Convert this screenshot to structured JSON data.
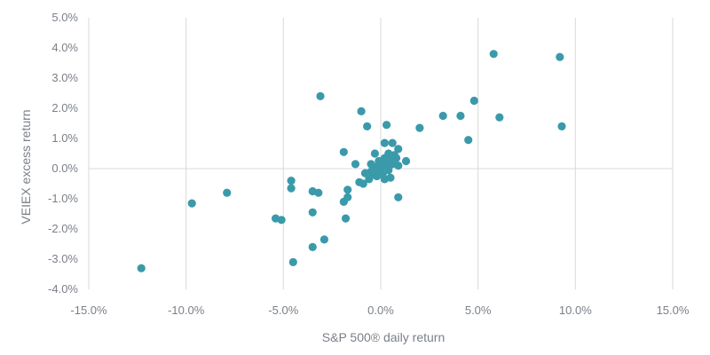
{
  "chart_data": {
    "type": "scatter",
    "xlabel": "S&P 500® daily return",
    "ylabel": "VEIEX excess return",
    "xlim": [
      -15,
      15
    ],
    "ylim": [
      -4,
      5
    ],
    "x_ticks": [
      -15,
      -10,
      -5,
      0,
      5,
      10,
      15
    ],
    "x_tick_labels": [
      "-15.0%",
      "-10.0%",
      "-5.0%",
      "0.0%",
      "5.0%",
      "10.0%",
      "15.0%"
    ],
    "y_ticks": [
      5,
      4,
      3,
      2,
      1,
      0,
      -1,
      -2,
      -3,
      -4
    ],
    "y_tick_labels": [
      "5.0%",
      "4.0%",
      "3.0%",
      "2.0%",
      "1.0%",
      "0.0%",
      "-1.0%",
      "-2.0%",
      "-3.0%",
      "-4.0%"
    ],
    "grid": "vertical",
    "marker_color": "#3a9aaa",
    "grid_color": "#d9d9d9",
    "series": [
      {
        "points": [
          [
            -12.3,
            -3.3
          ],
          [
            -9.7,
            -1.15
          ],
          [
            -7.9,
            -0.8
          ],
          [
            -5.4,
            -1.65
          ],
          [
            -5.1,
            -1.7
          ],
          [
            -4.6,
            -0.4
          ],
          [
            -4.6,
            -0.65
          ],
          [
            -4.5,
            -3.1
          ],
          [
            -3.5,
            -0.75
          ],
          [
            -3.5,
            -1.45
          ],
          [
            -3.5,
            -2.6
          ],
          [
            -3.2,
            -0.8
          ],
          [
            -3.1,
            2.4
          ],
          [
            -2.9,
            -2.35
          ],
          [
            -1.9,
            0.55
          ],
          [
            -1.9,
            -1.1
          ],
          [
            -1.8,
            -1.65
          ],
          [
            -1.7,
            -0.7
          ],
          [
            -1.7,
            -0.95
          ],
          [
            -1.3,
            0.15
          ],
          [
            -1.1,
            -0.45
          ],
          [
            -1.0,
            1.9
          ],
          [
            -0.9,
            -0.5
          ],
          [
            -0.8,
            -0.15
          ],
          [
            -0.7,
            1.4
          ],
          [
            -0.6,
            -0.35
          ],
          [
            -0.5,
            -0.1
          ],
          [
            -0.5,
            0.15
          ],
          [
            -0.4,
            -0.2
          ],
          [
            -0.3,
            0.5
          ],
          [
            -0.3,
            0.05
          ],
          [
            -0.2,
            -0.25
          ],
          [
            -0.1,
            0.25
          ],
          [
            -0.1,
            -0.05
          ],
          [
            0.0,
            0.1
          ],
          [
            0.0,
            -0.15
          ],
          [
            0.1,
            0.05
          ],
          [
            0.1,
            -0.2
          ],
          [
            0.2,
            0.35
          ],
          [
            0.2,
            0.85
          ],
          [
            0.2,
            -0.35
          ],
          [
            0.3,
            0.2
          ],
          [
            0.3,
            1.45
          ],
          [
            0.4,
            -0.05
          ],
          [
            0.4,
            0.5
          ],
          [
            0.5,
            0.3
          ],
          [
            0.5,
            -0.3
          ],
          [
            0.6,
            0.85
          ],
          [
            0.6,
            0.15
          ],
          [
            0.7,
            0.45
          ],
          [
            0.8,
            0.35
          ],
          [
            0.9,
            0.65
          ],
          [
            0.9,
            0.1
          ],
          [
            0.9,
            -0.95
          ],
          [
            1.3,
            0.25
          ],
          [
            2.0,
            1.35
          ],
          [
            3.2,
            1.75
          ],
          [
            4.1,
            1.75
          ],
          [
            4.5,
            0.95
          ],
          [
            4.8,
            2.25
          ],
          [
            5.8,
            3.8
          ],
          [
            6.1,
            1.7
          ],
          [
            9.2,
            3.7
          ],
          [
            9.3,
            1.4
          ]
        ]
      }
    ]
  }
}
